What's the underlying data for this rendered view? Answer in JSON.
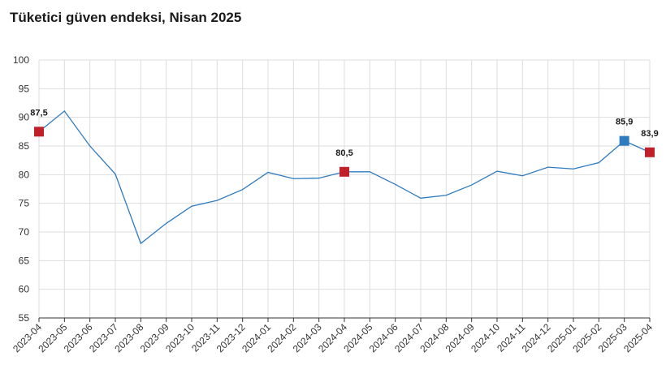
{
  "chart_data": {
    "type": "line",
    "title": "Tüketici güven endeksi, Nisan 2025",
    "xlabel": "",
    "ylabel": "",
    "ylim": [
      55,
      100
    ],
    "yticks": [
      55,
      60,
      65,
      70,
      75,
      80,
      85,
      90,
      95,
      100
    ],
    "grid": true,
    "categories": [
      "2023-04",
      "2023-05",
      "2023-06",
      "2023-07",
      "2023-08",
      "2023-09",
      "2023-10",
      "2023-11",
      "2023-12",
      "2024-01",
      "2024-02",
      "2024-03",
      "2024-04",
      "2024-05",
      "2024-06",
      "2024-07",
      "2024-08",
      "2024-09",
      "2024-10",
      "2024-11",
      "2024-12",
      "2025-01",
      "2025-02",
      "2025-03",
      "2025-04"
    ],
    "series": [
      {
        "name": "Tüketici güven endeksi",
        "color": "#2e7bbf",
        "values": [
          87.5,
          91.1,
          85.0,
          80.1,
          68.0,
          71.5,
          74.5,
          75.5,
          77.4,
          80.4,
          79.3,
          79.4,
          80.5,
          80.5,
          78.3,
          75.9,
          76.4,
          78.2,
          80.6,
          79.8,
          81.3,
          81.0,
          82.1,
          85.9,
          83.9
        ]
      }
    ],
    "highlights": [
      {
        "index": 0,
        "label": "87,5",
        "color": "#c0202a"
      },
      {
        "index": 12,
        "label": "80,5",
        "color": "#c0202a"
      },
      {
        "index": 23,
        "label": "85,9",
        "color": "#2e7bbf"
      },
      {
        "index": 24,
        "label": "83,9",
        "color": "#c0202a"
      }
    ],
    "colors": {
      "line": "#2e7bbf",
      "grid": "#dddddd",
      "axis": "#333333"
    }
  }
}
